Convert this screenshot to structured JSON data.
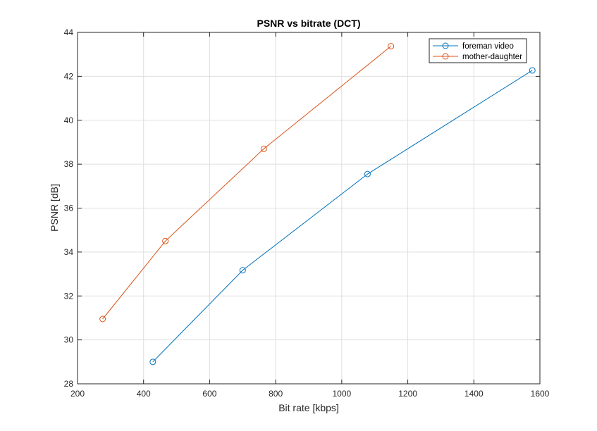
{
  "chart_data": {
    "type": "line",
    "title": "PSNR vs bitrate (DCT)",
    "xlabel": "Bit rate [kbps]",
    "ylabel": "PSNR [dB]",
    "xlim": [
      200,
      1600
    ],
    "ylim": [
      28,
      44
    ],
    "xticks": [
      200,
      400,
      600,
      800,
      1000,
      1200,
      1400,
      1600
    ],
    "yticks": [
      28,
      30,
      32,
      34,
      36,
      38,
      40,
      42,
      44
    ],
    "grid": true,
    "legend_position": "top-right",
    "series": [
      {
        "name": "foreman video",
        "color": "#0072BD",
        "marker": "circle",
        "x": [
          428,
          700,
          1078,
          1577
        ],
        "y": [
          29.0,
          33.17,
          37.55,
          42.27
        ]
      },
      {
        "name": "mother-daughter",
        "color": "#D95319",
        "marker": "circle",
        "x": [
          276,
          466,
          764,
          1149
        ],
        "y": [
          30.95,
          34.5,
          38.7,
          43.37
        ]
      }
    ]
  }
}
